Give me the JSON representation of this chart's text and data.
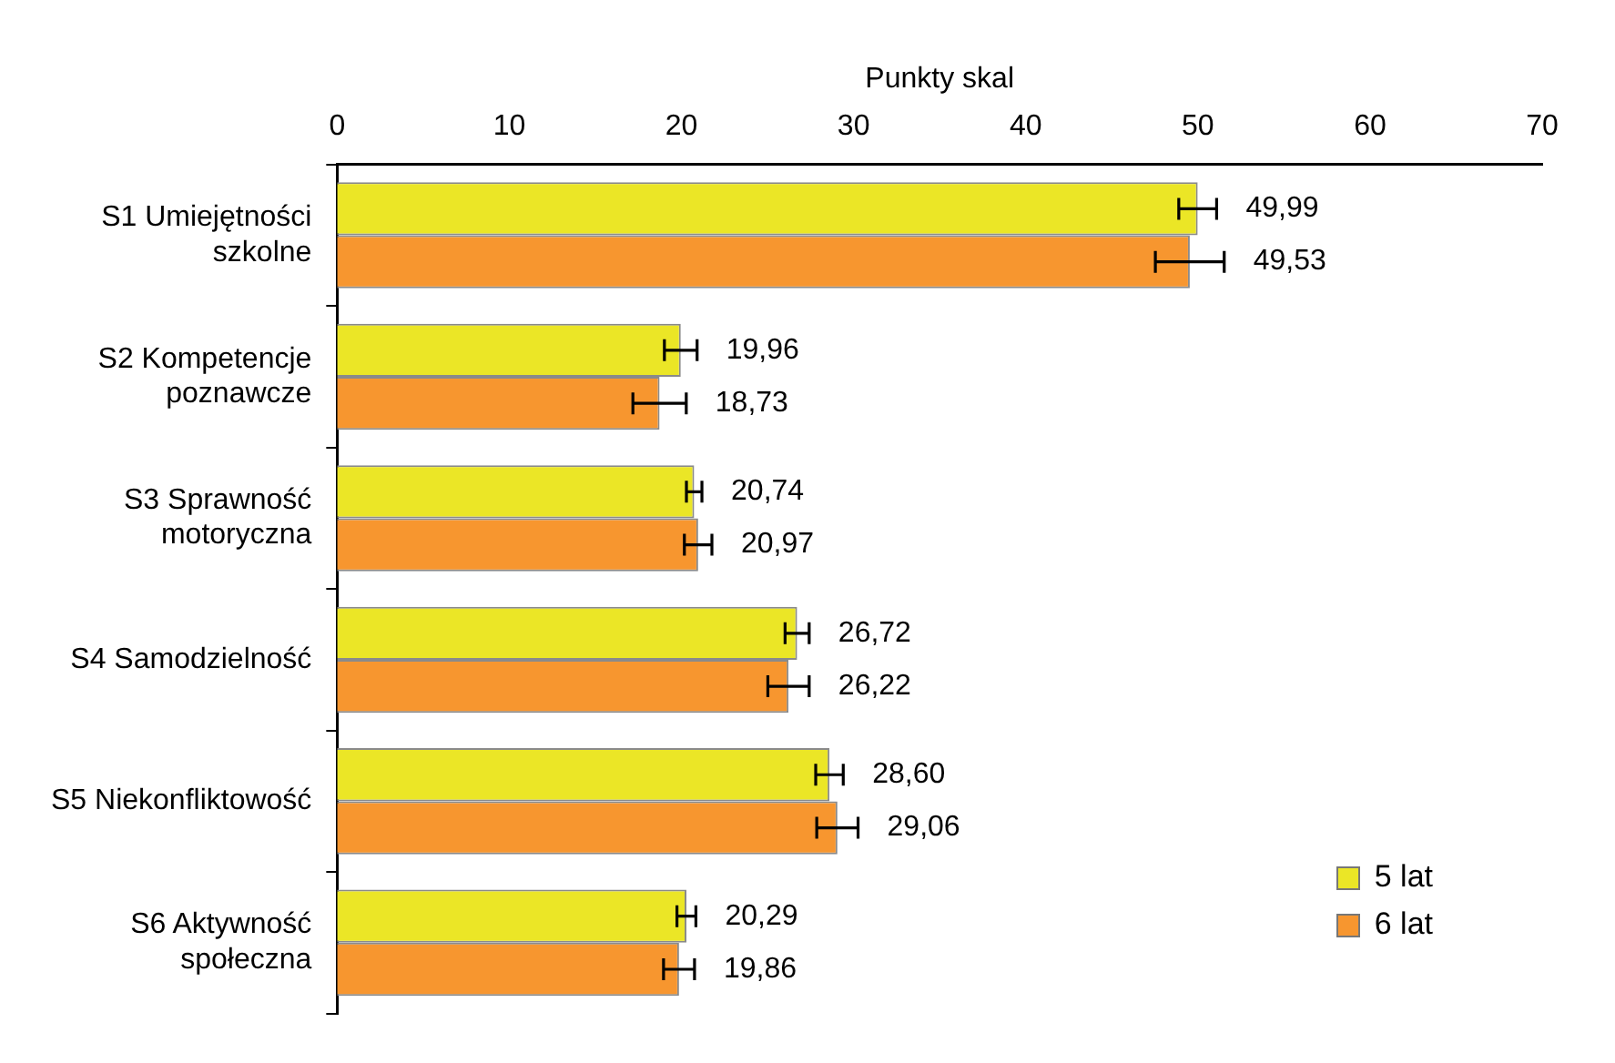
{
  "chart_data": {
    "type": "bar",
    "orientation": "horizontal",
    "xlabel": "Punkty skal",
    "categories": [
      "S1 Umiejętności szkolne",
      "S2 Kompetencje poznawcze",
      "S3 Sprawność motoryczna",
      "S4 Samodzielność",
      "S5 Niekonfliktowość",
      "S6 Aktywność społeczna"
    ],
    "series": [
      {
        "name": "5 lat",
        "color": "#ebe626",
        "values": [
          49.99,
          19.96,
          20.74,
          26.72,
          28.6,
          20.29
        ],
        "errors": [
          1.1,
          0.95,
          0.45,
          0.7,
          0.8,
          0.55
        ],
        "value_labels": [
          "49,99",
          "19,96",
          "20,74",
          "26,72",
          "28,60",
          "20,29"
        ]
      },
      {
        "name": "6 lat",
        "color": "#f7962f",
        "values": [
          49.53,
          18.73,
          20.97,
          26.22,
          29.06,
          19.86
        ],
        "errors": [
          2.0,
          1.55,
          0.8,
          1.2,
          1.2,
          0.9
        ],
        "value_labels": [
          "49,53",
          "18,73",
          "20,97",
          "26,22",
          "29,06",
          "19,86"
        ]
      }
    ],
    "xlim": [
      0,
      70
    ],
    "xticks": [
      0,
      10,
      20,
      30,
      40,
      50,
      60,
      70
    ],
    "grid": false,
    "legend": "bottom right"
  }
}
